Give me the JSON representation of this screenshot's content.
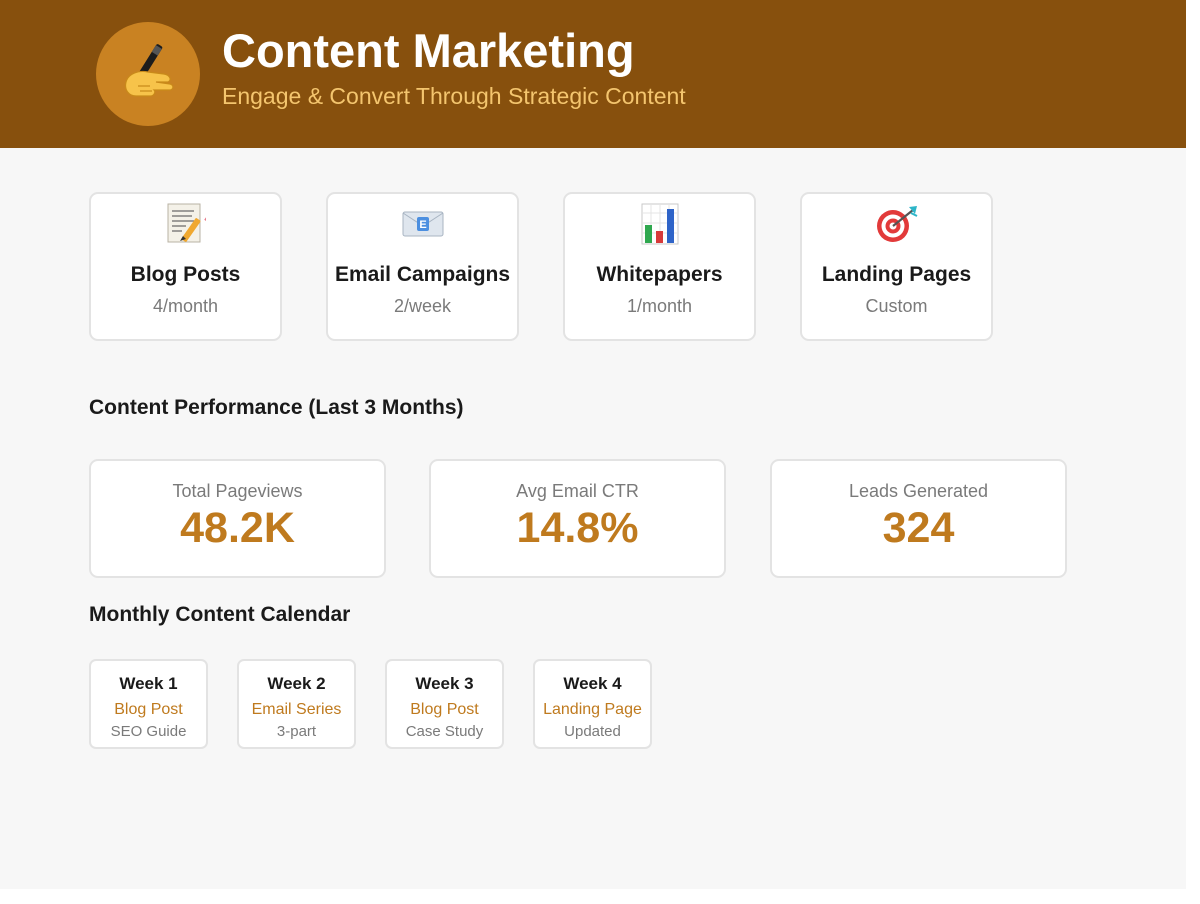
{
  "header": {
    "logo_icon": "writing-hand-icon",
    "title": "Content Marketing",
    "subtitle": "Engage & Convert Through Strategic Content",
    "background_color": "#87500d",
    "subtitle_color": "#f4c56e",
    "logo_circle_color": "#c98222"
  },
  "channels": [
    {
      "icon": "memo-icon",
      "name": "Blog Posts",
      "frequency": "4/month"
    },
    {
      "icon": "envelope-icon",
      "name": "Email Campaigns",
      "frequency": "2/week"
    },
    {
      "icon": "bar-chart-icon",
      "name": "Whitepapers",
      "frequency": "1/month"
    },
    {
      "icon": "target-icon",
      "name": "Landing Pages",
      "frequency": "Custom"
    }
  ],
  "performance": {
    "title": "Content Performance (Last 3 Months)",
    "metrics": [
      {
        "label": "Total Pageviews",
        "value": "48.2K"
      },
      {
        "label": "Avg Email CTR",
        "value": "14.8%"
      },
      {
        "label": "Leads Generated",
        "value": "324"
      }
    ],
    "value_color": "#bf7a1e"
  },
  "calendar": {
    "title": "Monthly Content Calendar",
    "weeks": [
      {
        "week": "Week 1",
        "type": "Blog Post",
        "note": "SEO Guide"
      },
      {
        "week": "Week 2",
        "type": "Email Series",
        "note": "3-part"
      },
      {
        "week": "Week 3",
        "type": "Blog Post",
        "note": "Case Study"
      },
      {
        "week": "Week 4",
        "type": "Landing Page",
        "note": "Updated"
      }
    ]
  }
}
